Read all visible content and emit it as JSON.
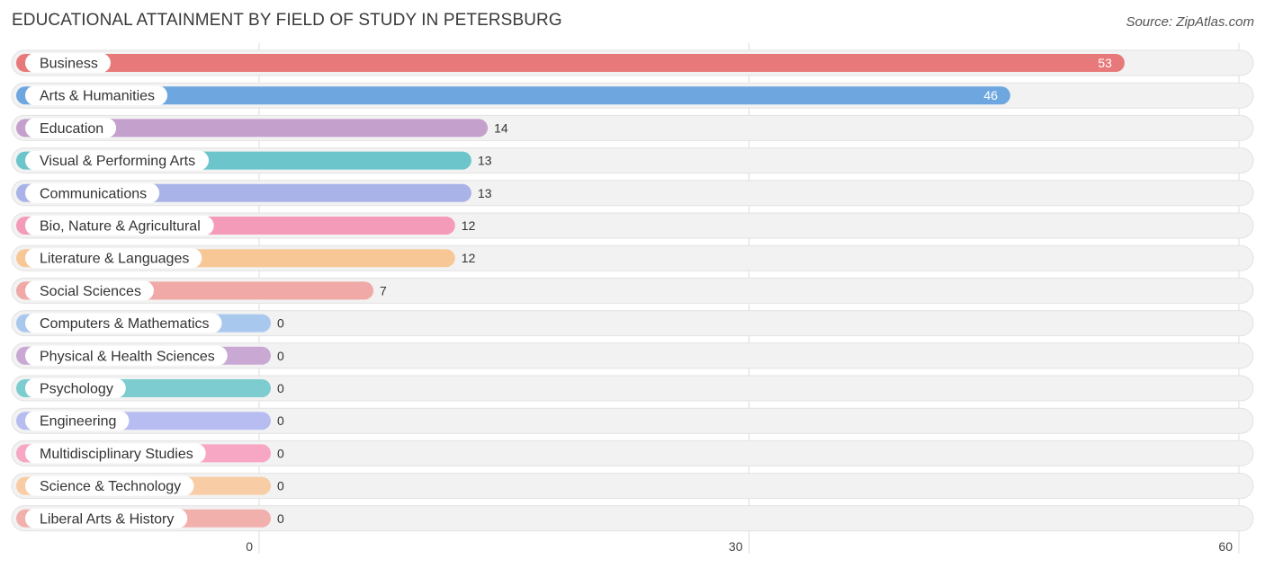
{
  "header": {
    "title": "EDUCATIONAL ATTAINMENT BY FIELD OF STUDY IN PETERSBURG",
    "source": "Source: ZipAtlas.com"
  },
  "chart_data": {
    "type": "bar",
    "orientation": "horizontal",
    "title": "EDUCATIONAL ATTAINMENT BY FIELD OF STUDY IN PETERSBURG",
    "xlabel": "",
    "ylabel": "",
    "xlim": [
      0,
      60
    ],
    "xticks": [
      0,
      30,
      60
    ],
    "xtick_labels": [
      "0",
      "30",
      "60"
    ],
    "grid": true,
    "value_labels_inside_for": [
      "Business",
      "Arts & Humanities"
    ],
    "categories": [
      "Business",
      "Arts & Humanities",
      "Education",
      "Visual & Performing Arts",
      "Communications",
      "Bio, Nature & Agricultural",
      "Literature & Languages",
      "Social Sciences",
      "Computers & Mathematics",
      "Physical & Health Sciences",
      "Psychology",
      "Engineering",
      "Multidisciplinary Studies",
      "Science & Technology",
      "Liberal Arts & History"
    ],
    "values": [
      53,
      46,
      14,
      13,
      13,
      12,
      12,
      7,
      0,
      0,
      0,
      0,
      0,
      0,
      0
    ],
    "value_labels": [
      "53",
      "46",
      "14",
      "13",
      "13",
      "12",
      "12",
      "7",
      "0",
      "0",
      "0",
      "0",
      "0",
      "0",
      "0"
    ],
    "colors": [
      "#e8797a",
      "#6ea7e0",
      "#c4a0cc",
      "#6cc5ca",
      "#a9b3e8",
      "#f59bba",
      "#f8c796",
      "#f0a9a6",
      "#a9c8ee",
      "#c9a9d3",
      "#7dcdd0",
      "#b7bdf0",
      "#f7a6c3",
      "#f8cda5",
      "#f2b0ad"
    ]
  }
}
